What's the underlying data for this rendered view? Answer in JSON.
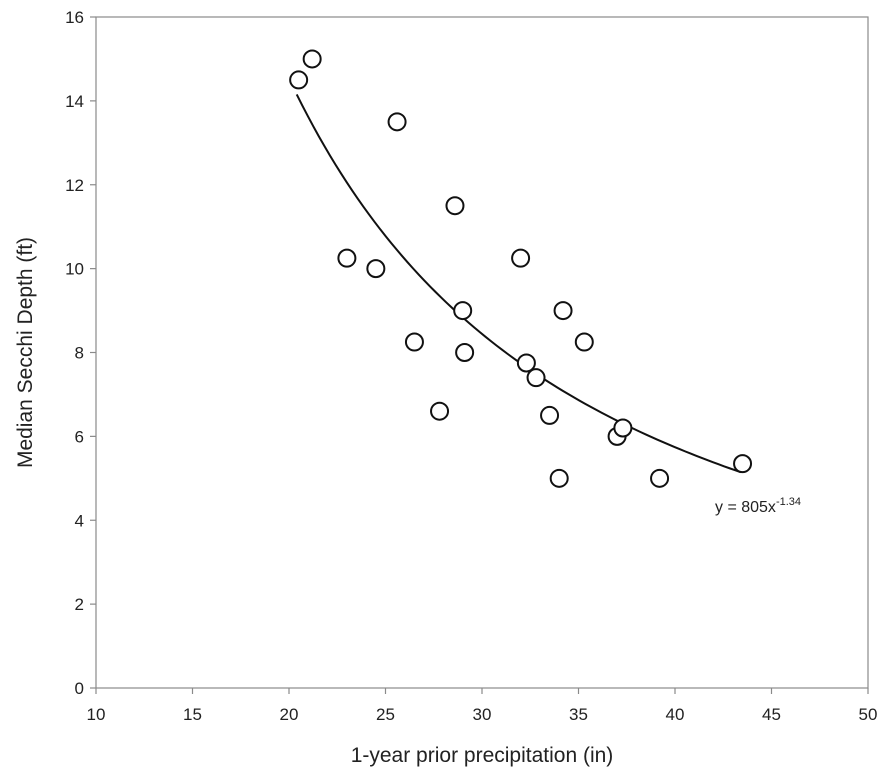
{
  "chart_data": {
    "type": "scatter",
    "xlabel": "1-year prior precipitation (in)",
    "ylabel": "Median Secchi Depth (ft)",
    "xlim": [
      10,
      50
    ],
    "ylim": [
      0,
      16
    ],
    "x_ticks": [
      10,
      15,
      20,
      25,
      30,
      35,
      40,
      45,
      50
    ],
    "y_ticks": [
      0,
      2,
      4,
      6,
      8,
      10,
      12,
      14,
      16
    ],
    "grid": false,
    "marker": "open-circle",
    "points": [
      {
        "x": 20.5,
        "y": 14.5
      },
      {
        "x": 21.2,
        "y": 15.0
      },
      {
        "x": 23.0,
        "y": 10.25
      },
      {
        "x": 24.5,
        "y": 10.0
      },
      {
        "x": 25.6,
        "y": 13.5
      },
      {
        "x": 26.5,
        "y": 8.25
      },
      {
        "x": 27.8,
        "y": 6.6
      },
      {
        "x": 28.6,
        "y": 11.5
      },
      {
        "x": 29.0,
        "y": 9.0
      },
      {
        "x": 29.1,
        "y": 8.0
      },
      {
        "x": 32.0,
        "y": 10.25
      },
      {
        "x": 32.3,
        "y": 7.75
      },
      {
        "x": 32.8,
        "y": 7.4
      },
      {
        "x": 33.5,
        "y": 6.5
      },
      {
        "x": 34.0,
        "y": 5.0
      },
      {
        "x": 34.2,
        "y": 9.0
      },
      {
        "x": 35.3,
        "y": 8.25
      },
      {
        "x": 37.0,
        "y": 6.0
      },
      {
        "x": 37.3,
        "y": 6.2
      },
      {
        "x": 39.2,
        "y": 5.0
      },
      {
        "x": 43.5,
        "y": 5.35
      }
    ],
    "trendline": {
      "type": "power",
      "coefficient": 805,
      "exponent": -1.34,
      "x_range": [
        20.4,
        43.4
      ],
      "equation_prefix": "y = 805x",
      "equation_exponent": "-1.34"
    }
  }
}
